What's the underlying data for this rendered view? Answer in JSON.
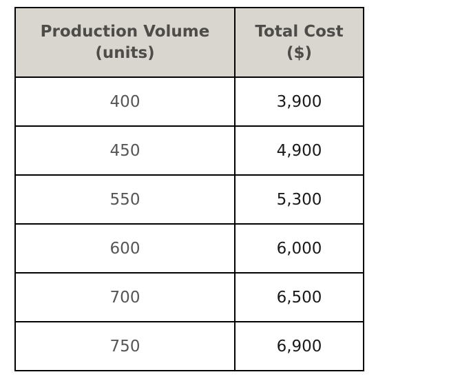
{
  "table": {
    "headers": [
      {
        "line1": "Production Volume",
        "line2": "(units)"
      },
      {
        "line1": "Total Cost",
        "line2": "($)"
      }
    ],
    "rows": [
      {
        "volume": "400",
        "cost": "3,900"
      },
      {
        "volume": "450",
        "cost": "4,900"
      },
      {
        "volume": "550",
        "cost": "5,300"
      },
      {
        "volume": "600",
        "cost": "6,000"
      },
      {
        "volume": "700",
        "cost": "6,500"
      },
      {
        "volume": "750",
        "cost": "6,900"
      }
    ]
  }
}
